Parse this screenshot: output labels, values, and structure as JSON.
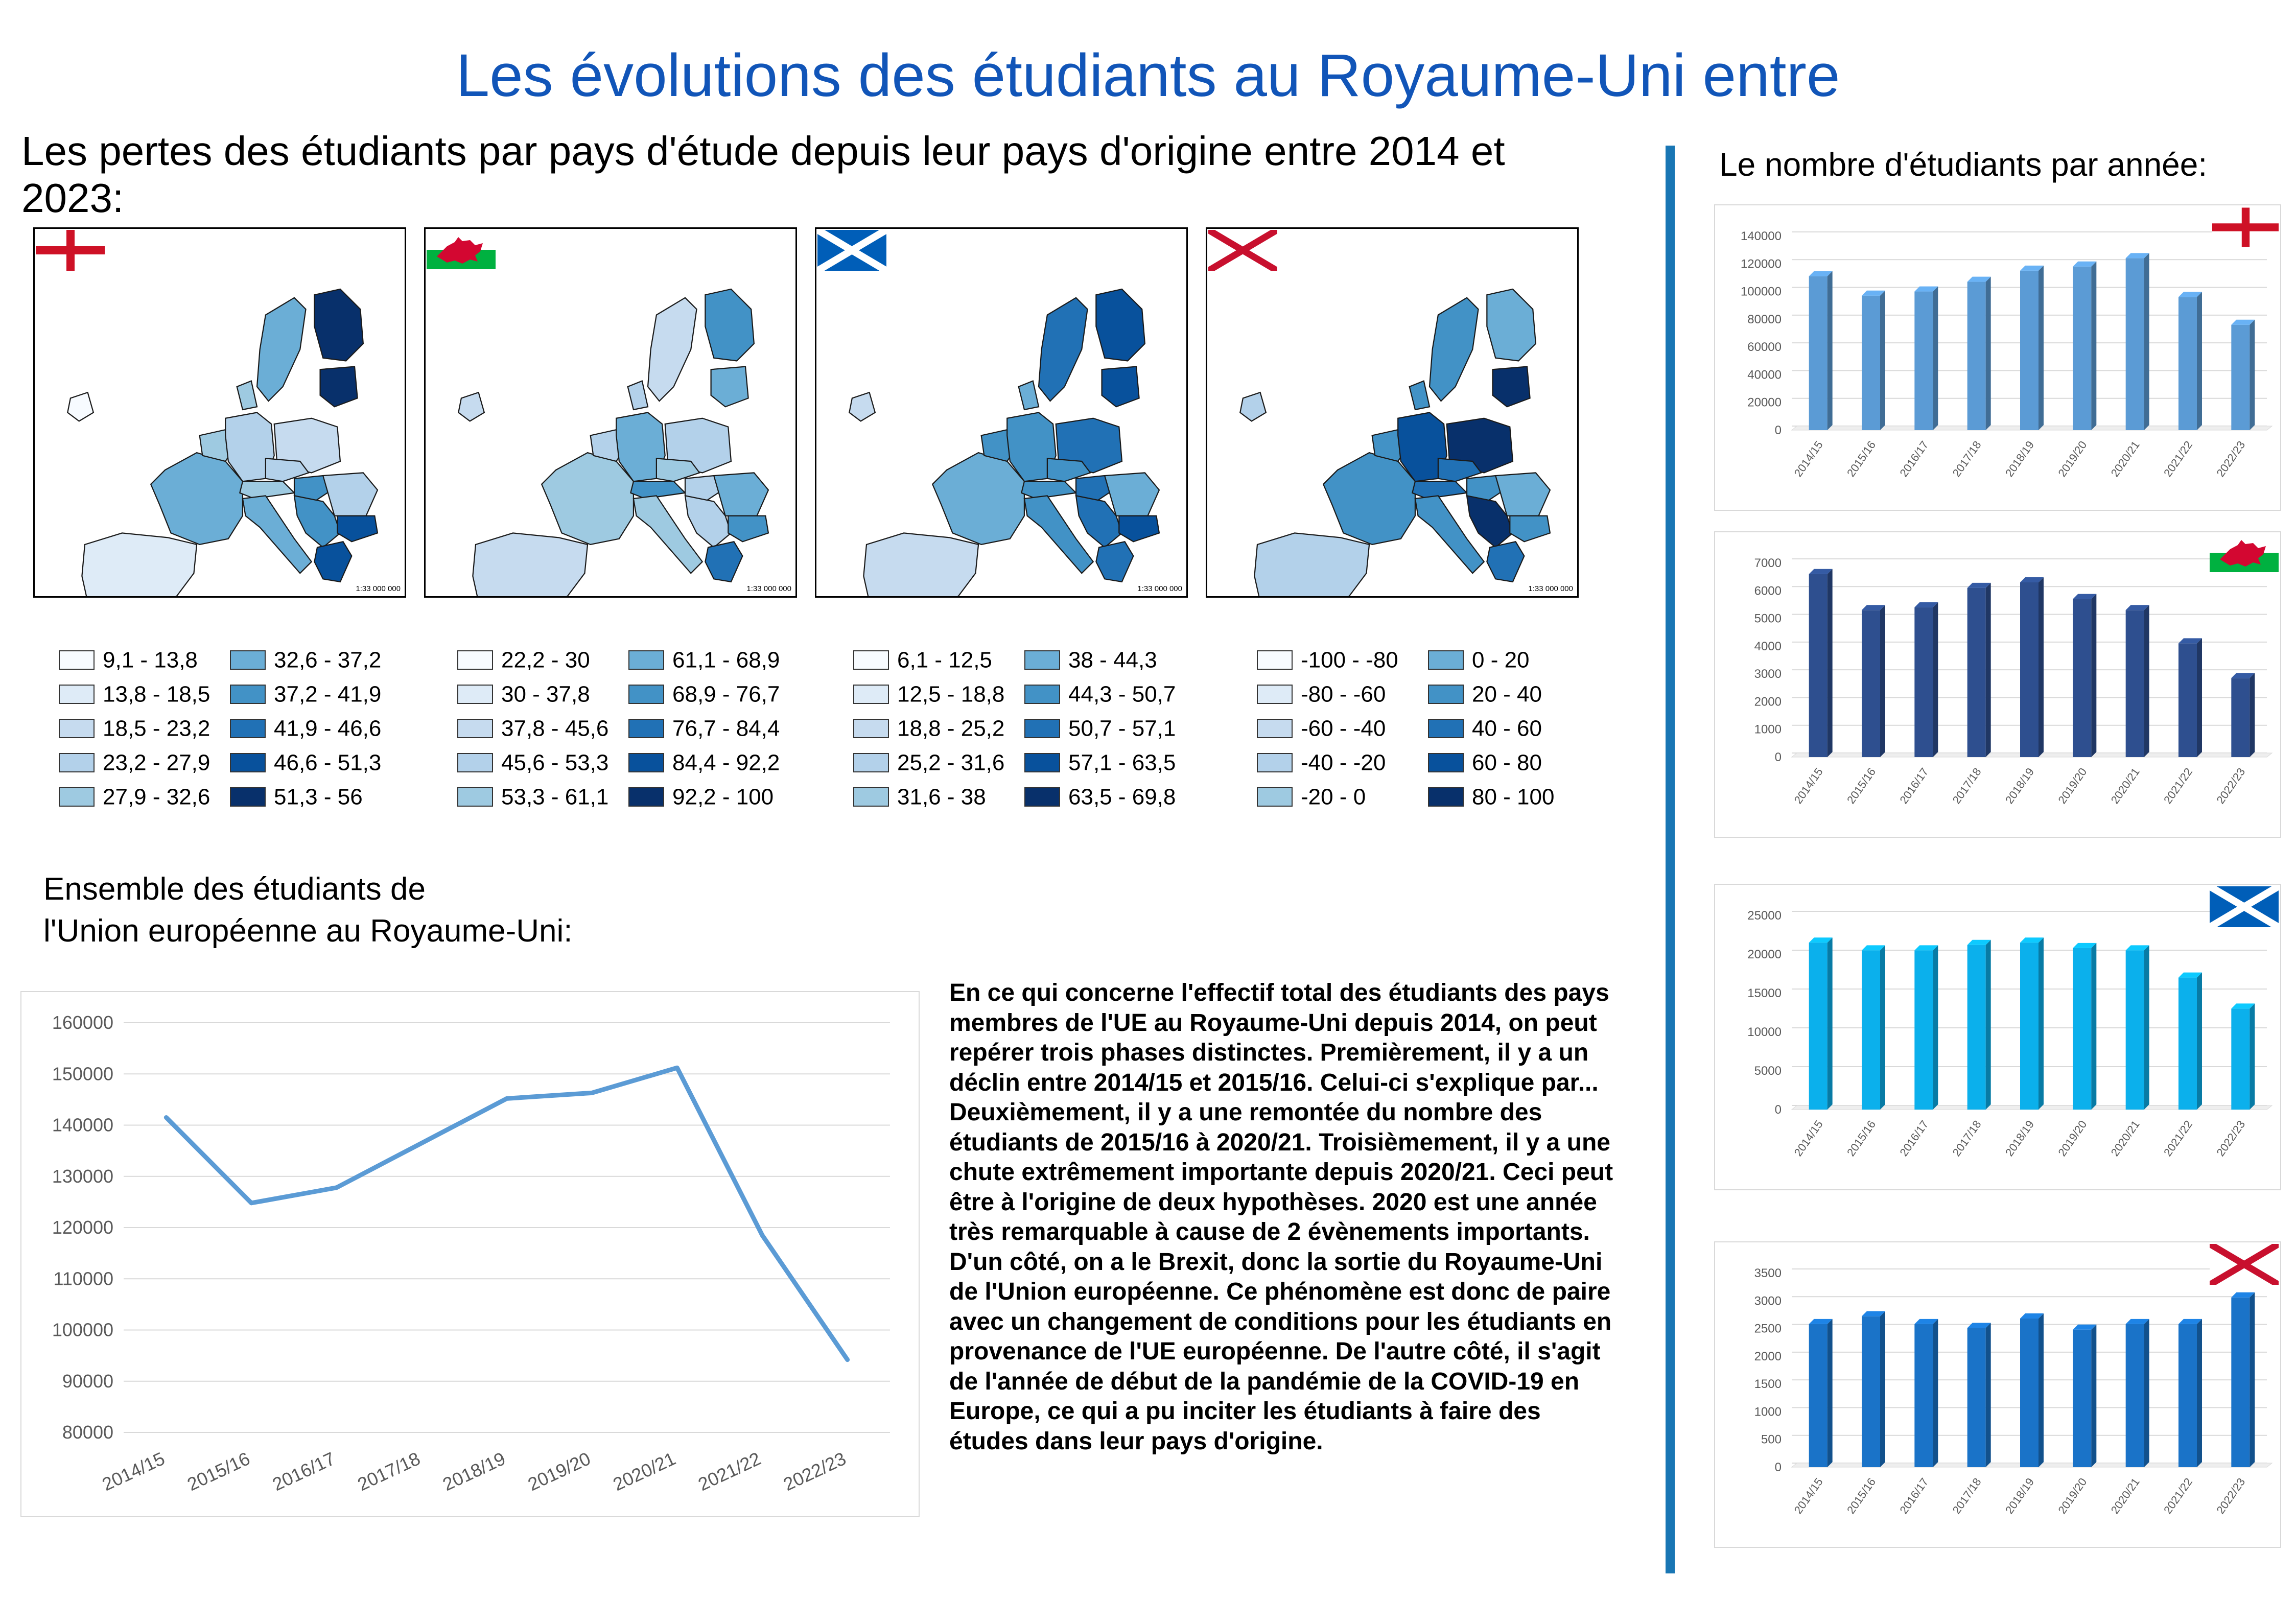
{
  "title": "Les évolutions des étudiants au Royaume-Uni entre",
  "maps_section": {
    "title": "Les pertes des étudiants par pays d'étude depuis leur pays d'origine entre 2014 et 2023:",
    "scale_label": "1:33 000 000",
    "maps": [
      {
        "flag": "england-flag-icon"
      },
      {
        "flag": "wales-flag-icon"
      },
      {
        "flag": "scotland-flag-icon"
      },
      {
        "flag": "northern-ireland-flag-icon"
      }
    ]
  },
  "legends": [
    {
      "items": [
        "9,1 - 13,8",
        "13,8 - 18,5",
        "18,5 - 23,2",
        "23,2 - 27,9",
        "27,9 - 32,6",
        "32,6 - 37,2",
        "37,2 - 41,9",
        "41,9 - 46,6",
        "46,6 - 51,3",
        "51,3 - 56"
      ]
    },
    {
      "items": [
        "22,2 - 30",
        "30 - 37,8",
        "37,8 - 45,6",
        "45,6 - 53,3",
        "53,3 - 61,1",
        "61,1 - 68,9",
        "68,9 - 76,7",
        "76,7 - 84,4",
        "84,4 - 92,2",
        "92,2 - 100"
      ]
    },
    {
      "items": [
        "6,1 - 12,5",
        "12,5 - 18,8",
        "18,8 - 25,2",
        "25,2 - 31,6",
        "31,6 - 38",
        "38 - 44,3",
        "44,3 - 50,7",
        "50,7 - 57,1",
        "57,1 - 63,5",
        "63,5 - 69,8"
      ]
    },
    {
      "items": [
        "-100 - -80",
        "-80 - -60",
        "-60 - -40",
        "-40 - -20",
        "-20 - 0",
        "0 - 20",
        "20 - 40",
        "40 - 60",
        "60 - 80",
        "80 - 100"
      ]
    }
  ],
  "legend_colors": [
    "#f7fbff",
    "#deebf7",
    "#c6dbef",
    "#b3d1ea",
    "#9ecae1",
    "#6baed6",
    "#4292c6",
    "#2171b5",
    "#08519c",
    "#08306b"
  ],
  "line_section": {
    "title_line1": "Ensemble des étudiants de",
    "title_line2": "l'Union européenne au Royaume-Uni:"
  },
  "paragraph": "En ce qui concerne l'effectif total des étudiants des pays membres de l'UE au Royaume-Uni depuis 2014, on peut repérer trois phases distinctes. Premièrement, il y a un déclin entre 2014/15 et 2015/16. Celui-ci s'explique par... Deuxièmement, il y a une remontée du nombre des étudiants de 2015/16 à 2020/21. Troisièmement, il y a une chute extrêmement importante depuis 2020/21. Ceci peut être à l'origine de deux hypothèses. 2020 est une année très remarquable à cause de 2 évènements importants. D'un côté, on a le Brexit, donc la sortie du Royaume-Uni de l'Union européenne. Ce phénomène est donc de paire avec un changement de conditions pour les étudiants en provenance de l'UE européenne. De l'autre côté, il s'agit de l'année de début de la pandémie de la COVID-19 en Europe, ce qui a pu inciter les étudiants à faire des études dans leur pays d'origine.",
  "bar_section": {
    "title": "Le nombre d'étudiants par année:"
  },
  "chart_data": [
    {
      "type": "line",
      "categories": [
        "2014/15",
        "2015/16",
        "2016/17",
        "2017/18",
        "2018/19",
        "2019/20",
        "2020/21",
        "2021/22",
        "2022/23"
      ],
      "series": [
        {
          "values": [
            141500,
            124800,
            127800,
            136500,
            145200,
            146300,
            151200,
            118500,
            94200
          ]
        }
      ],
      "ylim": [
        80000,
        160000
      ],
      "yticks": [
        "80000",
        "90000",
        "100000",
        "110000",
        "120000",
        "130000",
        "140000",
        "150000",
        "160000"
      ],
      "color": "#5b9bd5",
      "grid": true
    },
    {
      "type": "bar",
      "flag": "england-flag-icon",
      "categories": [
        "2014/15",
        "2015/16",
        "2016/17",
        "2017/18",
        "2018/19",
        "2019/20",
        "2020/21",
        "2021/22",
        "2022/23"
      ],
      "values": [
        111000,
        97000,
        100000,
        107000,
        115000,
        118000,
        124000,
        96000,
        76000
      ],
      "ylim": [
        0,
        140000
      ],
      "yticks": [
        "0",
        "20000",
        "40000",
        "60000",
        "80000",
        "100000",
        "120000",
        "140000"
      ],
      "color": "#5b9bd5"
    },
    {
      "type": "bar",
      "flag": "wales-flag-icon",
      "categories": [
        "2014/15",
        "2015/16",
        "2016/17",
        "2017/18",
        "2018/19",
        "2019/20",
        "2020/21",
        "2021/22",
        "2022/23"
      ],
      "values": [
        6600,
        5300,
        5400,
        6100,
        6300,
        5700,
        5300,
        4100,
        2850
      ],
      "ylim": [
        0,
        7000
      ],
      "yticks": [
        "0",
        "1000",
        "2000",
        "3000",
        "4000",
        "5000",
        "6000",
        "7000"
      ],
      "color": "#2e4f8f"
    },
    {
      "type": "bar",
      "flag": "scotland-flag-icon",
      "categories": [
        "2014/15",
        "2015/16",
        "2016/17",
        "2017/18",
        "2018/19",
        "2019/20",
        "2020/21",
        "2021/22",
        "2022/23"
      ],
      "values": [
        21500,
        20500,
        20500,
        21200,
        21500,
        20800,
        20500,
        17000,
        13000
      ],
      "ylim": [
        0,
        25000
      ],
      "yticks": [
        "0",
        "5000",
        "10000",
        "15000",
        "20000",
        "25000"
      ],
      "color": "#0bb0ec"
    },
    {
      "type": "bar",
      "flag": "northern-ireland-flag-icon",
      "categories": [
        "2014/15",
        "2015/16",
        "2016/17",
        "2017/18",
        "2018/19",
        "2019/20",
        "2020/21",
        "2021/22",
        "2022/23"
      ],
      "values": [
        2580,
        2720,
        2580,
        2510,
        2680,
        2480,
        2580,
        2580,
        3060
      ],
      "ylim": [
        0,
        3500
      ],
      "yticks": [
        "0",
        "500",
        "1000",
        "1500",
        "2000",
        "2500",
        "3000",
        "3500"
      ],
      "color": "#1a73c8"
    }
  ]
}
